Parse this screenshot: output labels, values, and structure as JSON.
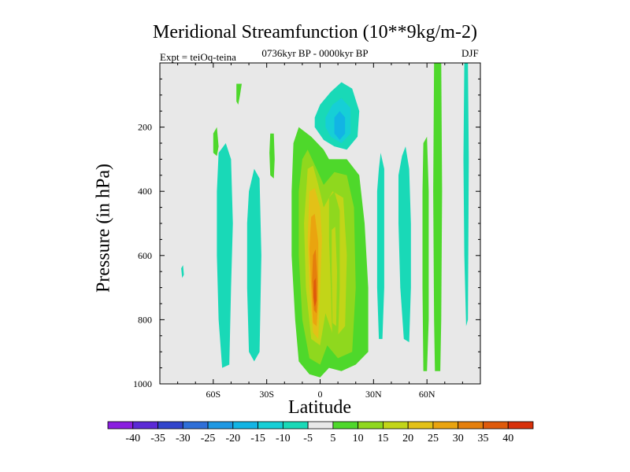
{
  "chart_data": {
    "type": "heatmap",
    "title": "Meridional Streamfunction (10**9kg/m-2)",
    "subtitle": "0736kyr BP - 0000kyr BP",
    "left_string": "Expt = teiOq-teina",
    "right_string": "DJF",
    "xlabel": "Latitude",
    "ylabel": "Pressure (in hPa)",
    "xlim": [
      -90,
      90
    ],
    "ylim": [
      1000,
      0
    ],
    "x_ticks": [
      {
        "value": -60,
        "label": "60S"
      },
      {
        "value": -30,
        "label": "30S"
      },
      {
        "value": 0,
        "label": "0"
      },
      {
        "value": 30,
        "label": "30N"
      },
      {
        "value": 60,
        "label": "60N"
      }
    ],
    "y_ticks": [
      {
        "value": 200,
        "label": "200"
      },
      {
        "value": 400,
        "label": "400"
      },
      {
        "value": 600,
        "label": "600"
      },
      {
        "value": 800,
        "label": "800"
      },
      {
        "value": 1000,
        "label": "1000"
      }
    ],
    "contour_levels": [
      -40,
      -35,
      -30,
      -25,
      -20,
      -15,
      -10,
      -5,
      5,
      10,
      15,
      20,
      25,
      30,
      35,
      40
    ],
    "colorbar_labels": [
      "-40",
      "-35",
      "-30",
      "-25",
      "-20",
      "-15",
      "-10",
      "-5",
      "5",
      "10",
      "15",
      "20",
      "25",
      "30",
      "35",
      "40"
    ],
    "colorbar_colors": [
      "#8a1fe0",
      "#5b2ad6",
      "#3245cc",
      "#2f6fd8",
      "#1e98e3",
      "#12b4e4",
      "#16cfd6",
      "#19d9b7",
      "#e8e8e8",
      "#4ed82b",
      "#8fd81e",
      "#c2d518",
      "#e3c117",
      "#eaa40f",
      "#e57f0c",
      "#df5a0b",
      "#d8300a"
    ],
    "background_color": "#e8e8e8",
    "features": [
      {
        "kind": "negative cell",
        "lat_center": 8,
        "pressure_top": 60,
        "pressure_bottom": 260,
        "min_value": -15
      },
      {
        "kind": "positive cell",
        "lat_center": -3,
        "pressure_top": 220,
        "pressure_bottom": 980,
        "max_value": 30
      },
      {
        "kind": "positive cell",
        "lat_center": 10,
        "pressure_top": 300,
        "pressure_bottom": 950,
        "max_value": 15
      },
      {
        "kind": "negative band",
        "lat_center": -52,
        "pressure_top": 280,
        "pressure_bottom": 950,
        "min_value": -5
      },
      {
        "kind": "negative band",
        "lat_center": -37,
        "pressure_top": 330,
        "pressure_bottom": 930,
        "min_value": -5
      },
      {
        "kind": "negative band",
        "lat_center": 47,
        "pressure_top": 260,
        "pressure_bottom": 870,
        "min_value": -5
      },
      {
        "kind": "positive band",
        "lat_center": 66,
        "pressure_top": 0,
        "pressure_bottom": 960,
        "max_value": 5
      }
    ]
  }
}
